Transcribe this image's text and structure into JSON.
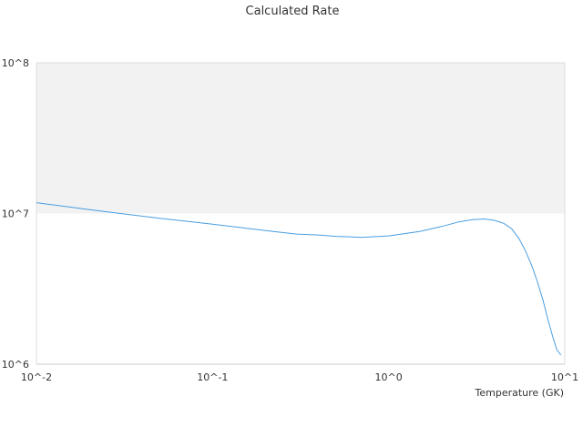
{
  "chart_data": {
    "type": "line",
    "title": "Calculated Rate",
    "xlabel": "Temperature (GK)",
    "ylabel": "",
    "x_scale": "log",
    "y_scale": "log",
    "xlim": [
      0.01,
      10
    ],
    "ylim": [
      1000000,
      100000000
    ],
    "x_ticks": [
      {
        "value": 0.01,
        "label": "10^-2"
      },
      {
        "value": 0.1,
        "label": "10^-1"
      },
      {
        "value": 1,
        "label": "10^0"
      },
      {
        "value": 10,
        "label": "10^1"
      }
    ],
    "y_ticks": [
      {
        "value": 1000000,
        "label": "10^6"
      },
      {
        "value": 10000000,
        "label": "10^7"
      },
      {
        "value": 100000000,
        "label": "10^8"
      }
    ],
    "shaded_band": {
      "from": 10000000,
      "to": 100000000,
      "color": "#f2f2f2"
    },
    "grid": false,
    "colors": {
      "line": "#4a9ee0",
      "band": "#f2f2f2",
      "axis": "#cccccc",
      "text": "#333333"
    },
    "series": [
      {
        "name": "",
        "x": [
          0.01,
          0.02,
          0.03,
          0.05,
          0.1,
          0.2,
          0.3,
          0.4,
          0.5,
          0.6,
          0.7,
          0.8,
          1.0,
          1.5,
          2.0,
          2.5,
          3.0,
          3.5,
          4.0,
          4.5,
          5.0,
          5.5,
          6.0,
          6.5,
          7.0,
          7.5,
          8.0,
          8.5,
          9.0,
          9.5
        ],
        "y": [
          11800000,
          10600000,
          10000000,
          9300000,
          8500000,
          7700000,
          7300000,
          7200000,
          7050000,
          7000000,
          6950000,
          7000000,
          7100000,
          7600000,
          8200000,
          8800000,
          9100000,
          9200000,
          9000000,
          8600000,
          7900000,
          6800000,
          5600000,
          4500000,
          3500000,
          2700000,
          2000000,
          1550000,
          1250000,
          1150000
        ]
      }
    ]
  }
}
